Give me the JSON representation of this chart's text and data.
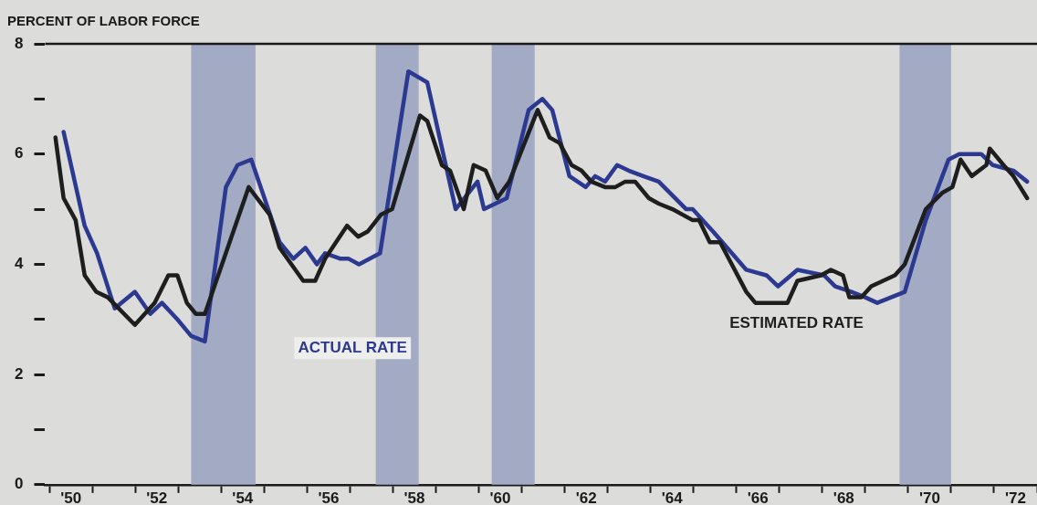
{
  "chart_data": {
    "type": "line",
    "ylabel": "PERCENT OF LABOR FORCE",
    "xlim": [
      49.4,
      72.5
    ],
    "ylim": [
      0,
      8
    ],
    "xticks": [
      {
        "value": 49.5,
        "label": null
      },
      {
        "value": 50,
        "label": "'50"
      },
      {
        "value": 50.5,
        "label": null
      },
      {
        "value": 51.5,
        "label": null
      },
      {
        "value": 52,
        "label": "'52"
      },
      {
        "value": 52.5,
        "label": null
      },
      {
        "value": 53.5,
        "label": null
      },
      {
        "value": 54,
        "label": "'54"
      },
      {
        "value": 54.5,
        "label": null
      },
      {
        "value": 55.5,
        "label": null
      },
      {
        "value": 56,
        "label": "'56"
      },
      {
        "value": 56.5,
        "label": null
      },
      {
        "value": 57.5,
        "label": null
      },
      {
        "value": 58,
        "label": "'58"
      },
      {
        "value": 58.5,
        "label": null
      },
      {
        "value": 59.5,
        "label": null
      },
      {
        "value": 60,
        "label": "'60"
      },
      {
        "value": 60.5,
        "label": null
      },
      {
        "value": 61.5,
        "label": null
      },
      {
        "value": 62,
        "label": "'62"
      },
      {
        "value": 62.5,
        "label": null
      },
      {
        "value": 63.5,
        "label": null
      },
      {
        "value": 64,
        "label": "'64"
      },
      {
        "value": 64.5,
        "label": null
      },
      {
        "value": 65.5,
        "label": null
      },
      {
        "value": 66,
        "label": "'66"
      },
      {
        "value": 66.5,
        "label": null
      },
      {
        "value": 67.5,
        "label": null
      },
      {
        "value": 68,
        "label": "'68"
      },
      {
        "value": 68.5,
        "label": null
      },
      {
        "value": 69.5,
        "label": null
      },
      {
        "value": 70,
        "label": "'70"
      },
      {
        "value": 70.5,
        "label": null
      },
      {
        "value": 71.5,
        "label": null
      },
      {
        "value": 72,
        "label": "'72"
      },
      {
        "value": 72.5,
        "label": null
      }
    ],
    "yticks": [
      0,
      {
        "value": 1,
        "label": null
      },
      2,
      {
        "value": 3,
        "label": null
      },
      4,
      {
        "value": 5,
        "label": null
      },
      6,
      {
        "value": 7,
        "label": null
      },
      8
    ],
    "bands": [
      {
        "axis": "x",
        "from": 52.8,
        "to": 54.3,
        "color": "#a3aac4"
      },
      {
        "axis": "x",
        "from": 57.1,
        "to": 58.1,
        "color": "#a3aac4"
      },
      {
        "axis": "x",
        "from": 59.8,
        "to": 60.8,
        "color": "#a3aac4"
      },
      {
        "axis": "x",
        "from": 69.3,
        "to": 70.5,
        "color": "#a3aac4"
      }
    ],
    "legend": false,
    "grid": false,
    "marker": "none",
    "line_style": "solid",
    "series": [
      {
        "name": "ACTUAL RATE",
        "color": "#2b3990",
        "x": [
          49.83,
          50.32,
          50.61,
          51.02,
          51.49,
          51.85,
          52.12,
          52.48,
          52.8,
          53.12,
          53.61,
          53.88,
          54.2,
          54.86,
          55.18,
          55.46,
          55.73,
          55.92,
          56.28,
          56.47,
          56.71,
          57.2,
          57.86,
          58.3,
          58.96,
          59.47,
          59.62,
          60.15,
          60.66,
          60.98,
          61.21,
          61.61,
          61.99,
          62.21,
          62.44,
          62.72,
          62.99,
          63.33,
          63.69,
          64.33,
          64.48,
          64.95,
          65.73,
          66.2,
          66.47,
          66.92,
          67.54,
          67.8,
          68.18,
          68.5,
          68.78,
          69.42,
          69.91,
          70.44,
          70.69,
          71.2,
          71.47,
          71.95,
          72.27
        ],
        "values": [
          6.4,
          4.7,
          4.2,
          3.2,
          3.5,
          3.1,
          3.3,
          3.0,
          2.7,
          2.6,
          5.4,
          5.8,
          5.9,
          4.4,
          4.1,
          4.3,
          4.0,
          4.2,
          4.1,
          4.1,
          4.0,
          4.2,
          7.5,
          7.3,
          5.0,
          5.5,
          5.0,
          5.2,
          6.8,
          7.0,
          6.8,
          5.6,
          5.4,
          5.6,
          5.5,
          5.8,
          5.7,
          5.6,
          5.5,
          5.0,
          5.0,
          4.6,
          3.9,
          3.8,
          3.6,
          3.9,
          3.8,
          3.6,
          3.5,
          3.4,
          3.3,
          3.5,
          4.8,
          5.9,
          6.0,
          6.0,
          5.8,
          5.7,
          5.5
        ]
      },
      {
        "name": "ESTIMATED RATE",
        "color": "#1e1e1e",
        "x": [
          49.64,
          49.83,
          50.11,
          50.32,
          50.59,
          50.86,
          51.49,
          51.95,
          52.27,
          52.48,
          52.7,
          52.91,
          53.12,
          54.14,
          54.63,
          54.86,
          55.41,
          55.69,
          55.92,
          56.43,
          56.69,
          56.92,
          57.22,
          57.48,
          58.13,
          58.3,
          58.64,
          58.83,
          59.15,
          59.38,
          59.66,
          59.93,
          60.21,
          60.87,
          61.15,
          61.38,
          61.66,
          61.89,
          62.12,
          62.44,
          62.68,
          62.91,
          63.14,
          63.46,
          63.69,
          64.01,
          64.48,
          64.63,
          64.88,
          65.12,
          65.73,
          65.94,
          66.69,
          66.92,
          67.47,
          67.7,
          67.98,
          68.13,
          68.41,
          68.64,
          69.19,
          69.42,
          69.91,
          70.3,
          70.53,
          70.72,
          70.98,
          71.32,
          71.4,
          71.72,
          71.95,
          72.27
        ],
        "values": [
          6.3,
          5.2,
          4.8,
          3.8,
          3.5,
          3.4,
          2.9,
          3.3,
          3.8,
          3.8,
          3.3,
          3.1,
          3.1,
          5.4,
          4.9,
          4.3,
          3.7,
          3.7,
          4.1,
          4.7,
          4.5,
          4.6,
          4.9,
          5.0,
          6.7,
          6.6,
          5.8,
          5.7,
          5.0,
          5.8,
          5.7,
          5.2,
          5.5,
          6.8,
          6.3,
          6.2,
          5.8,
          5.7,
          5.5,
          5.4,
          5.4,
          5.5,
          5.5,
          5.2,
          5.1,
          5.0,
          4.8,
          4.8,
          4.4,
          4.4,
          3.5,
          3.3,
          3.3,
          3.7,
          3.8,
          3.9,
          3.8,
          3.4,
          3.4,
          3.6,
          3.8,
          4.0,
          5.0,
          5.3,
          5.4,
          5.9,
          5.6,
          5.8,
          6.1,
          5.8,
          5.6,
          5.2
        ]
      }
    ]
  }
}
